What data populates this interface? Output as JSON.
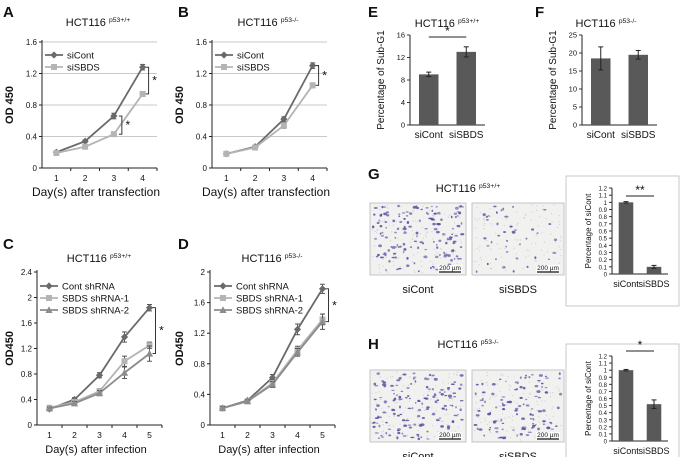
{
  "colors": {
    "dark_series": "#6a6a6a",
    "light_series": "#b4b4b4",
    "mid_series": "#8c8c8c",
    "bar_fill": "#595959",
    "axis": "#222222",
    "grid": "#c8c8c8",
    "dot": "#5a4fa3",
    "micro_bg": "#f1f1f0"
  },
  "chart_data": [
    {
      "id": "A",
      "panel_label": "A",
      "type": "line",
      "title": "HCT116",
      "title_superscript": "p53+/+",
      "xlabel": "Day(s) after transfection",
      "ylabel": "OD 450",
      "x": [
        1,
        2,
        3,
        4
      ],
      "xticks": [
        "1",
        "2",
        "3",
        "4"
      ],
      "ylim": [
        0,
        1.6
      ],
      "yticks": [
        "0",
        "0.4",
        "0.8",
        "1.2",
        "1.6"
      ],
      "grid": true,
      "series": [
        {
          "name": "siCont",
          "values": [
            0.2,
            0.34,
            0.66,
            1.28
          ],
          "errors": [
            0.01,
            0.015,
            0.035,
            0.035
          ],
          "marker": "diamond",
          "color_key": "dark_series"
        },
        {
          "name": "siSBDS",
          "values": [
            0.19,
            0.27,
            0.43,
            0.94
          ],
          "errors": [
            0.01,
            0.015,
            0.02,
            0.03
          ],
          "marker": "square",
          "color_key": "light_series"
        }
      ],
      "annotations": [
        {
          "text": "*",
          "between_x": 3
        },
        {
          "text": "*",
          "between_x": 4
        }
      ]
    },
    {
      "id": "B",
      "panel_label": "B",
      "type": "line",
      "title": "HCT116",
      "title_superscript": "p53-/-",
      "xlabel": "Day(s) after transfection",
      "ylabel": "OD 450",
      "x": [
        1,
        2,
        3,
        4
      ],
      "xticks": [
        "1",
        "2",
        "3",
        "4"
      ],
      "ylim": [
        0,
        1.6
      ],
      "yticks": [
        "0",
        "0.4",
        "0.8",
        "1.2",
        "1.6"
      ],
      "grid": true,
      "series": [
        {
          "name": "siCont",
          "values": [
            0.18,
            0.27,
            0.62,
            1.3
          ],
          "errors": [
            0.01,
            0.02,
            0.03,
            0.035
          ],
          "marker": "diamond",
          "color_key": "dark_series"
        },
        {
          "name": "siSBDS",
          "values": [
            0.18,
            0.26,
            0.54,
            1.05
          ],
          "errors": [
            0.01,
            0.02,
            0.035,
            0.03
          ],
          "marker": "square",
          "color_key": "light_series"
        }
      ],
      "annotations": [
        {
          "text": "*",
          "between_x": 4
        }
      ]
    },
    {
      "id": "C",
      "panel_label": "C",
      "type": "line",
      "title": "HCT116",
      "title_superscript": "p53+/+",
      "xlabel": "Day(s) after infection",
      "ylabel": "OD450",
      "x": [
        1,
        2,
        3,
        4,
        5
      ],
      "xticks": [
        "1",
        "2",
        "3",
        "4",
        "5"
      ],
      "ylim": [
        0,
        2.4
      ],
      "yticks": [
        "0",
        "0.4",
        "0.8",
        "1.2",
        "1.6",
        "2",
        "2.4"
      ],
      "grid": false,
      "series": [
        {
          "name": "Cont shRNA",
          "values": [
            0.25,
            0.4,
            0.78,
            1.38,
            1.84
          ],
          "errors": [
            0.02,
            0.03,
            0.04,
            0.08,
            0.05
          ],
          "marker": "diamond",
          "color_key": "dark_series"
        },
        {
          "name": "SBDS shRNA-1",
          "values": [
            0.27,
            0.36,
            0.53,
            1.0,
            1.25
          ],
          "errors": [
            0.02,
            0.03,
            0.04,
            0.08,
            0.05
          ],
          "marker": "square",
          "color_key": "light_series"
        },
        {
          "name": "SBDS shRNA-2",
          "values": [
            0.26,
            0.34,
            0.5,
            0.82,
            1.12
          ],
          "errors": [
            0.02,
            0.03,
            0.04,
            0.09,
            0.12
          ],
          "marker": "triangle",
          "color_key": "mid_series"
        }
      ],
      "annotations": [
        {
          "text": "*",
          "between_x": 5
        }
      ]
    },
    {
      "id": "D",
      "panel_label": "D",
      "type": "line",
      "title": "HCT116",
      "title_superscript": "p53-/-",
      "xlabel": "Day(s) after infection",
      "ylabel": "OD450",
      "x": [
        1,
        2,
        3,
        4,
        5
      ],
      "xticks": [
        "1",
        "2",
        "3",
        "4",
        "5"
      ],
      "ylim": [
        0,
        2.0
      ],
      "yticks": [
        "0",
        "0.4",
        "0.8",
        "1.2",
        "1.6",
        "2"
      ],
      "grid": false,
      "series": [
        {
          "name": "Cont shRNA",
          "values": [
            0.22,
            0.32,
            0.62,
            1.25,
            1.78
          ],
          "errors": [
            0.02,
            0.02,
            0.04,
            0.07,
            0.06
          ],
          "marker": "diamond",
          "color_key": "dark_series"
        },
        {
          "name": "SBDS shRNA-1",
          "values": [
            0.22,
            0.31,
            0.55,
            0.98,
            1.38
          ],
          "errors": [
            0.02,
            0.02,
            0.04,
            0.05,
            0.07
          ],
          "marker": "square",
          "color_key": "light_series"
        },
        {
          "name": "SBDS shRNA-2",
          "values": [
            0.22,
            0.31,
            0.53,
            0.95,
            1.35
          ],
          "errors": [
            0.02,
            0.02,
            0.04,
            0.05,
            0.1
          ],
          "marker": "triangle",
          "color_key": "mid_series"
        }
      ],
      "annotations": [
        {
          "text": "*",
          "between_x": 5
        }
      ]
    },
    {
      "id": "E",
      "panel_label": "E",
      "type": "bar",
      "title": "HCT116",
      "title_superscript": "p53+/+",
      "ylabel": "Percentage of Sub-G1",
      "categories": [
        "siCont",
        "siSBDS"
      ],
      "values": [
        9.0,
        13.0
      ],
      "errors": [
        0.4,
        0.9
      ],
      "ylim": [
        0,
        16
      ],
      "yticks": [
        "0",
        "4",
        "8",
        "12",
        "16"
      ],
      "annotations": [
        {
          "text": "*"
        }
      ]
    },
    {
      "id": "F",
      "panel_label": "F",
      "type": "bar",
      "title": "HCT116",
      "title_superscript": "p53-/-",
      "ylabel": "Percentage of Sub-G1",
      "categories": [
        "siCont",
        "siSBDS"
      ],
      "values": [
        18.5,
        19.5
      ],
      "errors": [
        3.2,
        1.2
      ],
      "ylim": [
        0,
        25
      ],
      "yticks": [
        "0",
        "5",
        "10",
        "15",
        "20",
        "25"
      ],
      "annotations": []
    },
    {
      "id": "G",
      "panel_label": "",
      "type": "bar",
      "ylabel": "Percentage of siCont",
      "categories": [
        "siCont",
        "siSBDS"
      ],
      "values": [
        1.0,
        0.1
      ],
      "errors": [
        0.01,
        0.02
      ],
      "ylim": [
        0,
        1.2
      ],
      "yticks": [
        "0",
        "0.1",
        "0.2",
        "0.3",
        "0.4",
        "0.5",
        "0.6",
        "0.7",
        "0.8",
        "0.9",
        "1",
        "1.1",
        "1.2"
      ],
      "annotations": [
        {
          "text": "**"
        }
      ]
    },
    {
      "id": "H",
      "panel_label": "",
      "type": "bar",
      "ylabel": "Percentage of siCont",
      "categories": [
        "siCont",
        "siSBDS"
      ],
      "values": [
        1.0,
        0.52
      ],
      "errors": [
        0.01,
        0.06
      ],
      "ylim": [
        0,
        1.2
      ],
      "yticks": [
        "0",
        "0.1",
        "0.2",
        "0.3",
        "0.4",
        "0.5",
        "0.6",
        "0.7",
        "0.8",
        "0.9",
        "1",
        "1.1",
        "1.2"
      ],
      "annotations": [
        {
          "text": "*"
        }
      ]
    }
  ],
  "migration_panels": [
    {
      "id": "G",
      "panel_label": "G",
      "title": "HCT116",
      "title_superscript": "p53+/+",
      "images": [
        {
          "label": "siCont",
          "scale_bar": "200 µm",
          "density": "high"
        },
        {
          "label": "siSBDS",
          "scale_bar": "200 µm",
          "density": "low"
        }
      ]
    },
    {
      "id": "H",
      "panel_label": "H",
      "title": "HCT116",
      "title_superscript": "p53-/-",
      "images": [
        {
          "label": "siCont",
          "scale_bar": "200 µm",
          "density": "high"
        },
        {
          "label": "siSBDS",
          "scale_bar": "200 µm",
          "density": "medium"
        }
      ]
    }
  ]
}
